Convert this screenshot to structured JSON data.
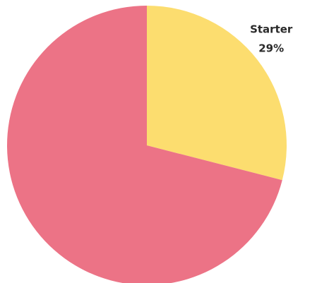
{
  "chart_data": {
    "type": "pie",
    "title": "",
    "slices": [
      {
        "label": "Starter",
        "value": 29,
        "display": "29%",
        "color": "#FCDD6F",
        "show_label": true
      },
      {
        "label": "",
        "value": 71,
        "display": "",
        "color": "#EC7386",
        "show_label": false
      }
    ],
    "start_angle_deg": 0,
    "direction": "clockwise",
    "legend": "none"
  }
}
